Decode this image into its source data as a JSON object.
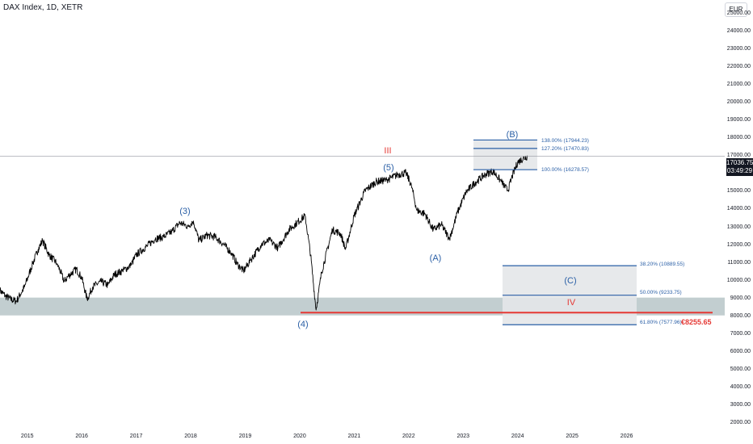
{
  "header": {
    "title": "DAX Index, 1D, XETR"
  },
  "toolbar": {
    "currency_label": "EUR"
  },
  "price_tag": {
    "price": "17036.75",
    "countdown": "03:49:29"
  },
  "annotations": {
    "wave_b": "(B)",
    "wave_iii": "III",
    "wave_5": "(5)",
    "wave_3": "(3)",
    "wave_a": "(A)",
    "wave_4": "(4)",
    "wave_c": "(C)",
    "wave_iv": "IV",
    "target_price": "€8255.65"
  },
  "fib_upper": [
    {
      "label": "138.00% (17944.23)",
      "value": 17944.23
    },
    {
      "label": "127.20% (17470.83)",
      "value": 17470.83
    },
    {
      "label": "100.00% (16278.57)",
      "value": 16278.57
    }
  ],
  "fib_lower": [
    {
      "label": "38.20% (10889.55)",
      "value": 10889.55
    },
    {
      "label": "50.00% (9233.75)",
      "value": 9233.75
    },
    {
      "label": "61.80% (7577.96)",
      "value": 7577.96
    }
  ],
  "colors": {
    "price_line": "#000000",
    "fib_line": "#2a5fa6",
    "fib_fill": "#e4e7e9",
    "support_band": "#b7c6c8",
    "target_line": "#e53935",
    "wave_label": "#2a5fa6",
    "roman_label": "#e53935"
  },
  "chart_data": {
    "type": "line",
    "ylim": [
      1700,
      25800
    ],
    "xlim": [
      2014.5,
      2027.8
    ],
    "y_ticks": [
      25000,
      24000,
      23000,
      22000,
      21000,
      20000,
      19000,
      18000,
      17000,
      16000,
      15000,
      14000,
      13000,
      12000,
      11000,
      10000,
      9000,
      8000,
      7000,
      6000,
      5000,
      4000,
      3000,
      2000
    ],
    "y_tick_labels": [
      "25000.00",
      "24000.00",
      "23000.00",
      "22000.00",
      "21000.00",
      "20000.00",
      "19000.00",
      "18000.00",
      "17000.00",
      "16000.00",
      "15000.00",
      "14000.00",
      "13000.00",
      "12000.00",
      "11000.00",
      "10000.00",
      "9000.00",
      "8000.00",
      "7000.00",
      "6000.00",
      "5000.00",
      "4000.00",
      "3000.00",
      "2000.00"
    ],
    "x_ticks": [
      2015,
      2016,
      2017,
      2018,
      2019,
      2020,
      2021,
      2022,
      2023,
      2024,
      2025,
      2026
    ],
    "x_tick_labels": [
      "2015",
      "2016",
      "2017",
      "2018",
      "2019",
      "2020",
      "2021",
      "2022",
      "2023",
      "2024",
      "2025",
      "2026"
    ],
    "series": [
      {
        "x": [
          2014.5,
          2014.6,
          2014.7,
          2014.8,
          2014.95,
          2015.1,
          2015.2,
          2015.28,
          2015.4,
          2015.55,
          2015.68,
          2015.75,
          2015.9,
          2016.0,
          2016.1,
          2016.2,
          2016.35,
          2016.48,
          2016.6,
          2016.75,
          2016.9,
          2017.0,
          2017.2,
          2017.35,
          2017.5,
          2017.65,
          2017.8,
          2017.95,
          2018.05,
          2018.15,
          2018.3,
          2018.45,
          2018.6,
          2018.75,
          2018.85,
          2018.97,
          2019.1,
          2019.3,
          2019.45,
          2019.6,
          2019.8,
          2019.95,
          2020.1,
          2020.2,
          2020.3,
          2020.4,
          2020.6,
          2020.75,
          2020.84,
          2021.0,
          2021.2,
          2021.4,
          2021.6,
          2021.8,
          2021.95,
          2022.05,
          2022.15,
          2022.3,
          2022.45,
          2022.6,
          2022.75,
          2022.9,
          2023.05,
          2023.2,
          2023.4,
          2023.55,
          2023.7,
          2023.82,
          2023.9,
          2024.0,
          2024.1,
          2024.18
        ],
        "values": [
          9500,
          9200,
          9000,
          8900,
          9700,
          11000,
          11800,
          12300,
          11500,
          11000,
          10000,
          10300,
          10700,
          10200,
          9000,
          9700,
          10000,
          9800,
          10400,
          10600,
          10900,
          11500,
          12000,
          12400,
          12500,
          12800,
          13300,
          13100,
          13400,
          12300,
          12600,
          12500,
          12100,
          11600,
          11000,
          10600,
          11200,
          12100,
          12300,
          11900,
          12900,
          13300,
          13700,
          11500,
          8400,
          10500,
          12900,
          12700,
          11800,
          13700,
          15100,
          15600,
          15700,
          16000,
          16100,
          15400,
          14000,
          13800,
          12900,
          13200,
          12400,
          13900,
          15000,
          15500,
          16000,
          16200,
          15600,
          15100,
          15900,
          16700,
          16900,
          17036.75
        ]
      }
    ]
  }
}
